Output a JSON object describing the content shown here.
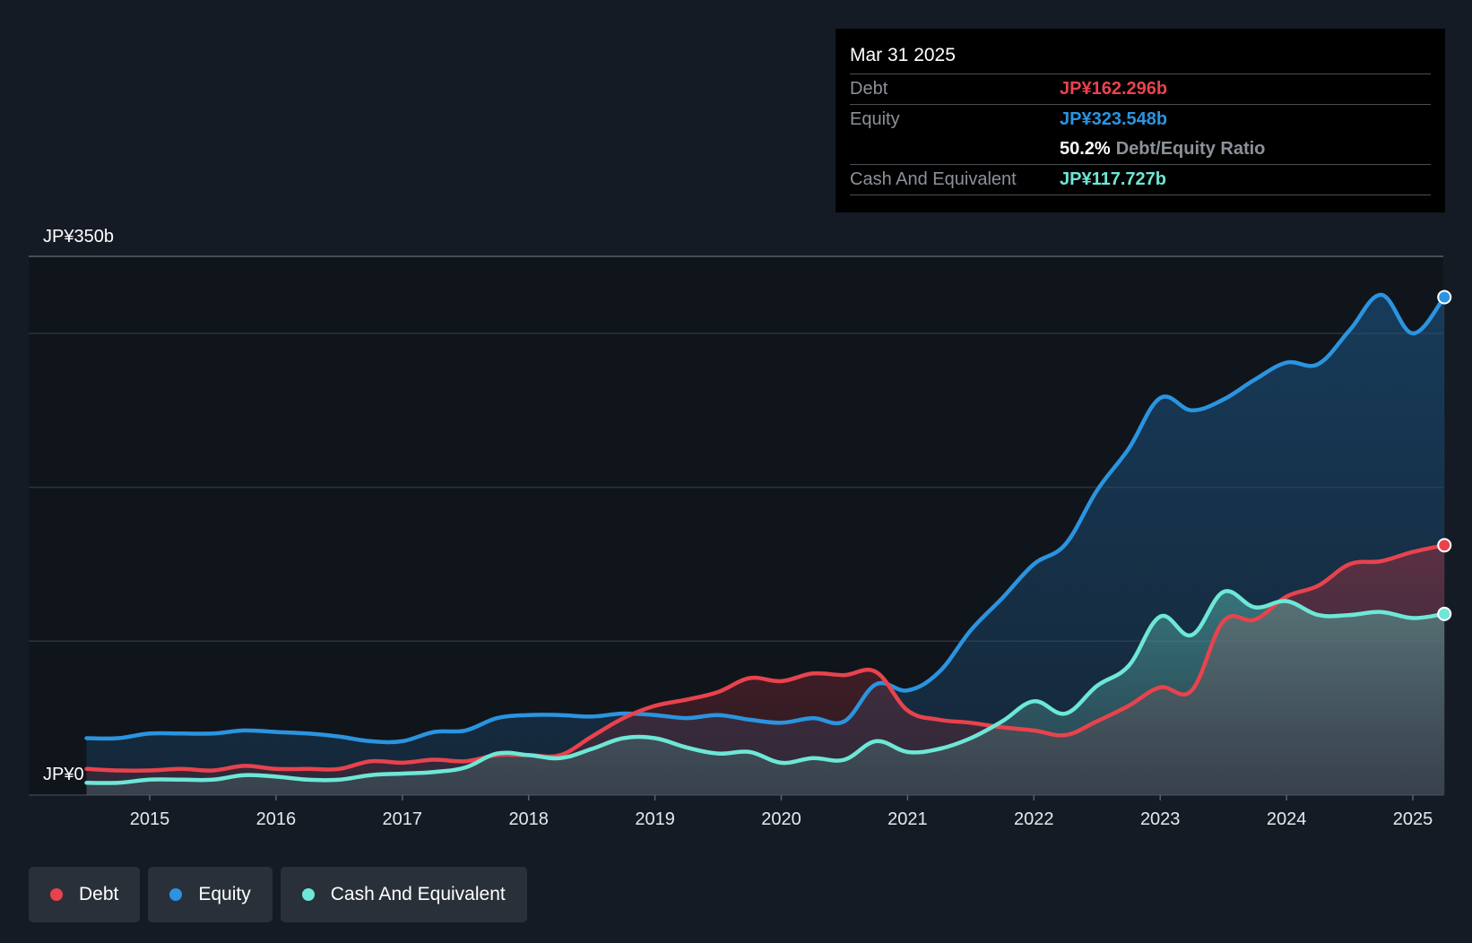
{
  "tooltip": {
    "date": "Mar 31 2025",
    "rows": [
      {
        "label": "Debt",
        "value": "JP¥162.296b",
        "color": "#e8434d"
      },
      {
        "label": "Equity",
        "value": "JP¥323.548b",
        "color": "#2b94e0"
      },
      {
        "label": "Cash And Equivalent",
        "value": "JP¥117.727b",
        "color": "#6ee7d6"
      }
    ],
    "ratio_value": "50.2%",
    "ratio_label": "Debt/Equity Ratio"
  },
  "legend": [
    {
      "label": "Debt",
      "color": "#e8434d"
    },
    {
      "label": "Equity",
      "color": "#2b94e0"
    },
    {
      "label": "Cash And Equivalent",
      "color": "#6ee7d6"
    }
  ],
  "chart_data": {
    "type": "area",
    "title": "",
    "ylabel": "",
    "xlabel": "",
    "ylim": [
      0,
      350
    ],
    "y_tick_labels": [
      "JP¥0",
      "JP¥350b"
    ],
    "x_ticks": [
      2015,
      2016,
      2017,
      2018,
      2019,
      2020,
      2021,
      2022,
      2023,
      2024,
      2025
    ],
    "x_tick_labels": [
      "2015",
      "2016",
      "2017",
      "2018",
      "2019",
      "2020",
      "2021",
      "2022",
      "2023",
      "2024",
      "2025"
    ],
    "xlim": [
      2014.0,
      2025.25
    ],
    "series": [
      {
        "name": "Equity",
        "color": "#2b94e0",
        "points": [
          [
            2014.5,
            37
          ],
          [
            2014.75,
            37
          ],
          [
            2015.0,
            40
          ],
          [
            2015.25,
            40
          ],
          [
            2015.5,
            40
          ],
          [
            2015.75,
            42
          ],
          [
            2016.0,
            41
          ],
          [
            2016.25,
            40
          ],
          [
            2016.5,
            38
          ],
          [
            2016.75,
            35
          ],
          [
            2017.0,
            35
          ],
          [
            2017.25,
            41
          ],
          [
            2017.5,
            42
          ],
          [
            2017.75,
            50
          ],
          [
            2018.0,
            52
          ],
          [
            2018.25,
            52
          ],
          [
            2018.5,
            51
          ],
          [
            2018.75,
            53
          ],
          [
            2019.0,
            52
          ],
          [
            2019.25,
            50
          ],
          [
            2019.5,
            52
          ],
          [
            2019.75,
            49
          ],
          [
            2020.0,
            47
          ],
          [
            2020.25,
            50
          ],
          [
            2020.5,
            48
          ],
          [
            2020.75,
            72
          ],
          [
            2021.0,
            68
          ],
          [
            2021.25,
            80
          ],
          [
            2021.5,
            107
          ],
          [
            2021.75,
            128
          ],
          [
            2022.0,
            150
          ],
          [
            2022.25,
            163
          ],
          [
            2022.5,
            198
          ],
          [
            2022.75,
            225
          ],
          [
            2023.0,
            258
          ],
          [
            2023.25,
            250
          ],
          [
            2023.5,
            257
          ],
          [
            2023.75,
            270
          ],
          [
            2024.0,
            281
          ],
          [
            2024.25,
            280
          ],
          [
            2024.5,
            302
          ],
          [
            2024.75,
            325
          ],
          [
            2025.0,
            300
          ],
          [
            2025.25,
            323.5
          ]
        ]
      },
      {
        "name": "Debt",
        "color": "#e8434d",
        "points": [
          [
            2014.5,
            17
          ],
          [
            2014.75,
            16
          ],
          [
            2015.0,
            16
          ],
          [
            2015.25,
            17
          ],
          [
            2015.5,
            16
          ],
          [
            2015.75,
            19
          ],
          [
            2016.0,
            17
          ],
          [
            2016.25,
            17
          ],
          [
            2016.5,
            17
          ],
          [
            2016.75,
            22
          ],
          [
            2017.0,
            21
          ],
          [
            2017.25,
            23
          ],
          [
            2017.5,
            22
          ],
          [
            2017.75,
            26
          ],
          [
            2018.0,
            26
          ],
          [
            2018.25,
            26
          ],
          [
            2018.5,
            38
          ],
          [
            2018.75,
            50
          ],
          [
            2019.0,
            58
          ],
          [
            2019.25,
            62
          ],
          [
            2019.5,
            67
          ],
          [
            2019.75,
            76
          ],
          [
            2020.0,
            74
          ],
          [
            2020.25,
            79
          ],
          [
            2020.5,
            78
          ],
          [
            2020.75,
            80
          ],
          [
            2021.0,
            55
          ],
          [
            2021.25,
            49
          ],
          [
            2021.5,
            47
          ],
          [
            2021.75,
            44
          ],
          [
            2022.0,
            42
          ],
          [
            2022.25,
            39
          ],
          [
            2022.5,
            48
          ],
          [
            2022.75,
            58
          ],
          [
            2023.0,
            70
          ],
          [
            2023.25,
            68
          ],
          [
            2023.5,
            113
          ],
          [
            2023.75,
            114
          ],
          [
            2024.0,
            129
          ],
          [
            2024.25,
            136
          ],
          [
            2024.5,
            150
          ],
          [
            2024.75,
            152
          ],
          [
            2025.0,
            158
          ],
          [
            2025.25,
            162.3
          ]
        ]
      },
      {
        "name": "Cash And Equivalent",
        "color": "#6ee7d6",
        "points": [
          [
            2014.5,
            8
          ],
          [
            2014.75,
            8
          ],
          [
            2015.0,
            10
          ],
          [
            2015.25,
            10
          ],
          [
            2015.5,
            10
          ],
          [
            2015.75,
            13
          ],
          [
            2016.0,
            12
          ],
          [
            2016.25,
            10
          ],
          [
            2016.5,
            10
          ],
          [
            2016.75,
            13
          ],
          [
            2017.0,
            14
          ],
          [
            2017.25,
            15
          ],
          [
            2017.5,
            18
          ],
          [
            2017.75,
            27
          ],
          [
            2018.0,
            26
          ],
          [
            2018.25,
            24
          ],
          [
            2018.5,
            30
          ],
          [
            2018.75,
            37
          ],
          [
            2019.0,
            37
          ],
          [
            2019.25,
            31
          ],
          [
            2019.5,
            27
          ],
          [
            2019.75,
            28
          ],
          [
            2020.0,
            21
          ],
          [
            2020.25,
            24
          ],
          [
            2020.5,
            23
          ],
          [
            2020.75,
            35
          ],
          [
            2021.0,
            28
          ],
          [
            2021.25,
            30
          ],
          [
            2021.5,
            37
          ],
          [
            2021.75,
            48
          ],
          [
            2022.0,
            61
          ],
          [
            2022.25,
            53
          ],
          [
            2022.5,
            71
          ],
          [
            2022.75,
            84
          ],
          [
            2023.0,
            116
          ],
          [
            2023.25,
            104
          ],
          [
            2023.5,
            132
          ],
          [
            2023.75,
            122
          ],
          [
            2024.0,
            126
          ],
          [
            2024.25,
            117
          ],
          [
            2024.5,
            117
          ],
          [
            2024.75,
            119
          ],
          [
            2025.0,
            115
          ],
          [
            2025.25,
            117.7
          ]
        ]
      }
    ]
  }
}
